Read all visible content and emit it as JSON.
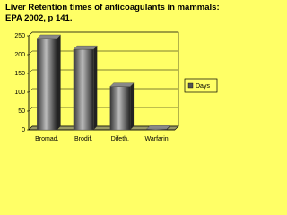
{
  "chart_data": {
    "type": "bar",
    "title_lines": [
      "Liver Retention times of anticoagulants in mammals:",
      "EPA 2002, p 141."
    ],
    "categories": [
      "Bromad.",
      "Brodif.",
      "Difeth.",
      "Warfarin"
    ],
    "series": [
      {
        "name": "Days",
        "color": "#555555",
        "values": [
          243,
          214,
          115,
          2
        ]
      }
    ],
    "ylim": [
      0,
      250
    ],
    "yticks": [
      0,
      50,
      100,
      150,
      200,
      250
    ],
    "grid": true,
    "legend": "right"
  }
}
